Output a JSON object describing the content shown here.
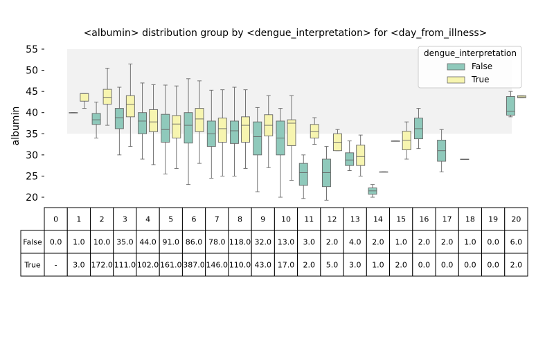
{
  "chart_data": {
    "type": "box",
    "title": "<albumin> distribution group by <dengue_interpretation> for <day_from_illness>",
    "ylabel": "albumin",
    "ylim": [
      18,
      56
    ],
    "yticks": [
      20,
      25,
      30,
      35,
      40,
      45,
      50,
      55
    ],
    "categories": [
      "0",
      "1",
      "2",
      "3",
      "4",
      "5",
      "6",
      "7",
      "8",
      "9",
      "10",
      "11",
      "12",
      "13",
      "14",
      "15",
      "16",
      "17",
      "18",
      "19",
      "20"
    ],
    "shaded_band": {
      "y_from": 35,
      "y_to": 55
    },
    "legend": {
      "title": "dengue_interpretation",
      "placement": "top-right"
    },
    "colors": {
      "False": "#8fc9bb",
      "True": "#f7f5b0",
      "band": "#f2f2f2",
      "whisker": "#666666"
    },
    "series": [
      {
        "name": "False",
        "boxes": [
          null,
          {
            "min": 40,
            "q1": 40,
            "median": 40,
            "q3": 40,
            "max": 40
          },
          {
            "min": 34,
            "q1": 37.2,
            "median": 38.3,
            "q3": 39.8,
            "max": 42.5
          },
          {
            "min": 30,
            "q1": 36.2,
            "median": 38.8,
            "q3": 41,
            "max": 46
          },
          {
            "min": 29,
            "q1": 35,
            "median": 38,
            "q3": 40,
            "max": 47
          },
          {
            "min": 25.5,
            "q1": 33,
            "median": 36,
            "q3": 39.6,
            "max": 46.5
          },
          {
            "min": 23,
            "q1": 32.8,
            "median": 37,
            "q3": 40,
            "max": 48
          },
          {
            "min": 24.5,
            "q1": 32,
            "median": 35,
            "q3": 38,
            "max": 45.3
          },
          {
            "min": 25,
            "q1": 32.7,
            "median": 35.7,
            "q3": 38,
            "max": 46
          },
          {
            "min": 21.3,
            "q1": 30,
            "median": 34.3,
            "q3": 37.8,
            "max": 41.2
          },
          {
            "min": 20,
            "q1": 30,
            "median": 34,
            "q3": 38,
            "max": 41
          },
          {
            "min": 19.7,
            "q1": 22.8,
            "median": 25.8,
            "q3": 28,
            "max": 30
          },
          {
            "min": 19.3,
            "q1": 22.5,
            "median": 25.8,
            "q3": 29,
            "max": 32
          },
          {
            "min": 26.3,
            "q1": 27.5,
            "median": 28.8,
            "q3": 30.5,
            "max": 33.3
          },
          {
            "min": 20,
            "q1": 20.7,
            "median": 21.5,
            "q3": 22.2,
            "max": 23
          },
          {
            "min": 33.3,
            "q1": 33.3,
            "median": 33.3,
            "q3": 33.3,
            "max": 33.3
          },
          {
            "min": 31.5,
            "q1": 33.8,
            "median": 36.2,
            "q3": 38.7,
            "max": 41
          },
          {
            "min": 26,
            "q1": 28.5,
            "median": 31,
            "q3": 33.5,
            "max": 36
          },
          {
            "min": 29,
            "q1": 29,
            "median": 29,
            "q3": 29,
            "max": 29
          },
          null,
          {
            "min": 39,
            "q1": 39.4,
            "median": 40.3,
            "q3": 43.8,
            "max": 45
          }
        ]
      },
      {
        "name": "True",
        "boxes": [
          null,
          {
            "min": 41,
            "q1": 42.7,
            "median": 44.5,
            "q3": 44.5,
            "max": 44.5
          },
          {
            "min": 37,
            "q1": 42,
            "median": 43.6,
            "q3": 45.5,
            "max": 50.5
          },
          {
            "min": 32,
            "q1": 39,
            "median": 42,
            "q3": 44,
            "max": 51.5
          },
          {
            "min": 27.7,
            "q1": 35.5,
            "median": 37.8,
            "q3": 40.7,
            "max": 46.6
          },
          {
            "min": 26.8,
            "q1": 34,
            "median": 37.3,
            "q3": 39.3,
            "max": 46.3
          },
          {
            "min": 28,
            "q1": 35.5,
            "median": 38.5,
            "q3": 41,
            "max": 47.5
          },
          {
            "min": 25,
            "q1": 33,
            "median": 36.2,
            "q3": 38.7,
            "max": 45.4
          },
          {
            "min": 26.8,
            "q1": 33,
            "median": 37,
            "q3": 39,
            "max": 45.4
          },
          {
            "min": 27,
            "q1": 34.5,
            "median": 37,
            "q3": 39.5,
            "max": 44
          },
          {
            "min": 24,
            "q1": 32.2,
            "median": 37.5,
            "q3": 38.3,
            "max": 44
          },
          {
            "min": 32.5,
            "q1": 34,
            "median": 35.5,
            "q3": 37.2,
            "max": 38.8
          },
          {
            "min": 31,
            "q1": 31,
            "median": 33,
            "q3": 35,
            "max": 36
          },
          {
            "min": 25,
            "q1": 27.5,
            "median": 29.6,
            "q3": 32.3,
            "max": 34.7
          },
          {
            "min": 26,
            "q1": 26,
            "median": 26,
            "q3": 26,
            "max": 26
          },
          {
            "min": 29,
            "q1": 31.2,
            "median": 33.5,
            "q3": 35.6,
            "max": 37.8
          },
          null,
          null,
          null,
          null,
          {
            "min": 43.5,
            "q1": 43.5,
            "median": 43.7,
            "q3": 44,
            "max": 44
          }
        ]
      }
    ],
    "table": {
      "columns": [
        "0",
        "1",
        "2",
        "3",
        "4",
        "5",
        "6",
        "7",
        "8",
        "9",
        "10",
        "11",
        "12",
        "13",
        "14",
        "15",
        "16",
        "17",
        "18",
        "19",
        "20"
      ],
      "rows": [
        {
          "label": "False",
          "values": [
            "0.0",
            "1.0",
            "10.0",
            "35.0",
            "44.0",
            "91.0",
            "86.0",
            "78.0",
            "118.0",
            "32.0",
            "13.0",
            "3.0",
            "2.0",
            "4.0",
            "2.0",
            "1.0",
            "2.0",
            "2.0",
            "1.0",
            "0.0",
            "6.0"
          ]
        },
        {
          "label": "True",
          "values": [
            "-",
            "3.0",
            "172.0",
            "111.0",
            "102.0",
            "161.0",
            "387.0",
            "146.0",
            "110.0",
            "43.0",
            "17.0",
            "2.0",
            "5.0",
            "3.0",
            "1.0",
            "2.0",
            "0.0",
            "0.0",
            "0.0",
            "0.0",
            "2.0"
          ]
        }
      ]
    }
  }
}
